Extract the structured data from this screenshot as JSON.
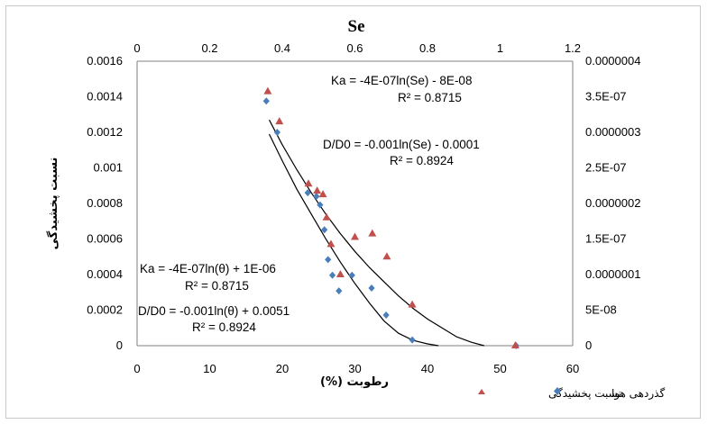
{
  "chart_data": {
    "type": "scatter",
    "title": "Se",
    "xlabel": "رطوبت (%)",
    "ylabel": "نسبت پخشیدگی",
    "x_bottom": {
      "ticks": [
        "0",
        "10",
        "20",
        "30",
        "40",
        "50",
        "60"
      ],
      "range": [
        0,
        60
      ]
    },
    "x_top": {
      "ticks": [
        "0",
        "0.2",
        "0.4",
        "0.6",
        "0.8",
        "1",
        "1.2"
      ],
      "range": [
        0,
        1.2
      ]
    },
    "y_left": {
      "ticks": [
        "0",
        "0.0002",
        "0.0004",
        "0.0006",
        "0.0008",
        "0.001",
        "0.0012",
        "0.0014",
        "0.0016"
      ],
      "range": [
        0,
        0.0016
      ]
    },
    "y_right": {
      "ticks": [
        "0",
        "5E-08",
        "0.0000001",
        "1.5E-07",
        "0.0000002",
        "2.5E-07",
        "0.0000003",
        "3.5E-07",
        "0.0000004"
      ],
      "range": [
        0,
        4e-07
      ]
    },
    "grid": false,
    "legend_position": "bottom-right",
    "series": [
      {
        "name": "گذردهی هوا",
        "marker": "diamond",
        "color": "#4a7ebb",
        "axis": "right",
        "x": [
          17.8,
          19.3,
          23.5,
          24.7,
          25.2,
          25.8,
          26.3,
          26.9,
          27.8,
          29.6,
          32.3,
          34.3,
          37.9,
          52.2
        ],
        "y": [
          3.44e-07,
          3e-07,
          2.15e-07,
          2.1e-07,
          1.98e-07,
          1.63e-07,
          1.21e-07,
          9.9e-08,
          7.7e-08,
          9.9e-08,
          8.1e-08,
          4.3e-08,
          8e-09,
          0
        ]
      },
      {
        "name": "نسبت پخشیدگی",
        "marker": "triangle",
        "color": "#c0504d",
        "axis": "left",
        "x": [
          18.0,
          19.6,
          23.6,
          24.8,
          25.6,
          26.1,
          26.7,
          28.0,
          30.0,
          32.4,
          34.4,
          37.9,
          52.1
        ],
        "y": [
          0.00143,
          0.00126,
          0.00091,
          0.00087,
          0.00085,
          0.00072,
          0.00057,
          0.0004,
          0.00061,
          0.00063,
          0.0005,
          0.00023,
          0
        ]
      }
    ],
    "trendlines": [
      {
        "label": "Ka",
        "x": [
          18.2,
          20,
          22,
          24,
          26,
          28,
          30,
          32,
          34,
          36,
          38,
          40,
          41.5
        ],
        "y": [
          0.00119,
          0.00104,
          0.00088,
          0.00074,
          0.0006,
          0.00047,
          0.00035,
          0.00024,
          0.00014,
          7e-05,
          3e-05,
          1e-05,
          0
        ]
      },
      {
        "label": "D/D0",
        "x": [
          18.2,
          20,
          22,
          24,
          26,
          28,
          30,
          32,
          34,
          36,
          38,
          40,
          42,
          44,
          46,
          47.8
        ],
        "y": [
          0.00127,
          0.00113,
          0.00099,
          0.00086,
          0.00074,
          0.00063,
          0.00053,
          0.00044,
          0.00036,
          0.00028,
          0.00021,
          0.00015,
          0.0001,
          5e-05,
          2e-05,
          0
        ]
      }
    ],
    "annotations": {
      "top_ka_eq": "Ka = -4E-07ln(Se) - 8E-08",
      "top_ka_r2": "R² = 0.8715",
      "top_d_eq": "D/D0 = -0.001ln(Se) - 0.0001",
      "top_d_r2": "R² = 0.8924",
      "bot_ka_eq": "Ka = -4E-07ln(θ) + 1E-06",
      "bot_ka_r2": "R² = 0.8715",
      "bot_d_eq": "D/D0 = -0.001ln(θ) + 0.0051",
      "bot_d_r2": "R² = 0.8924"
    }
  }
}
